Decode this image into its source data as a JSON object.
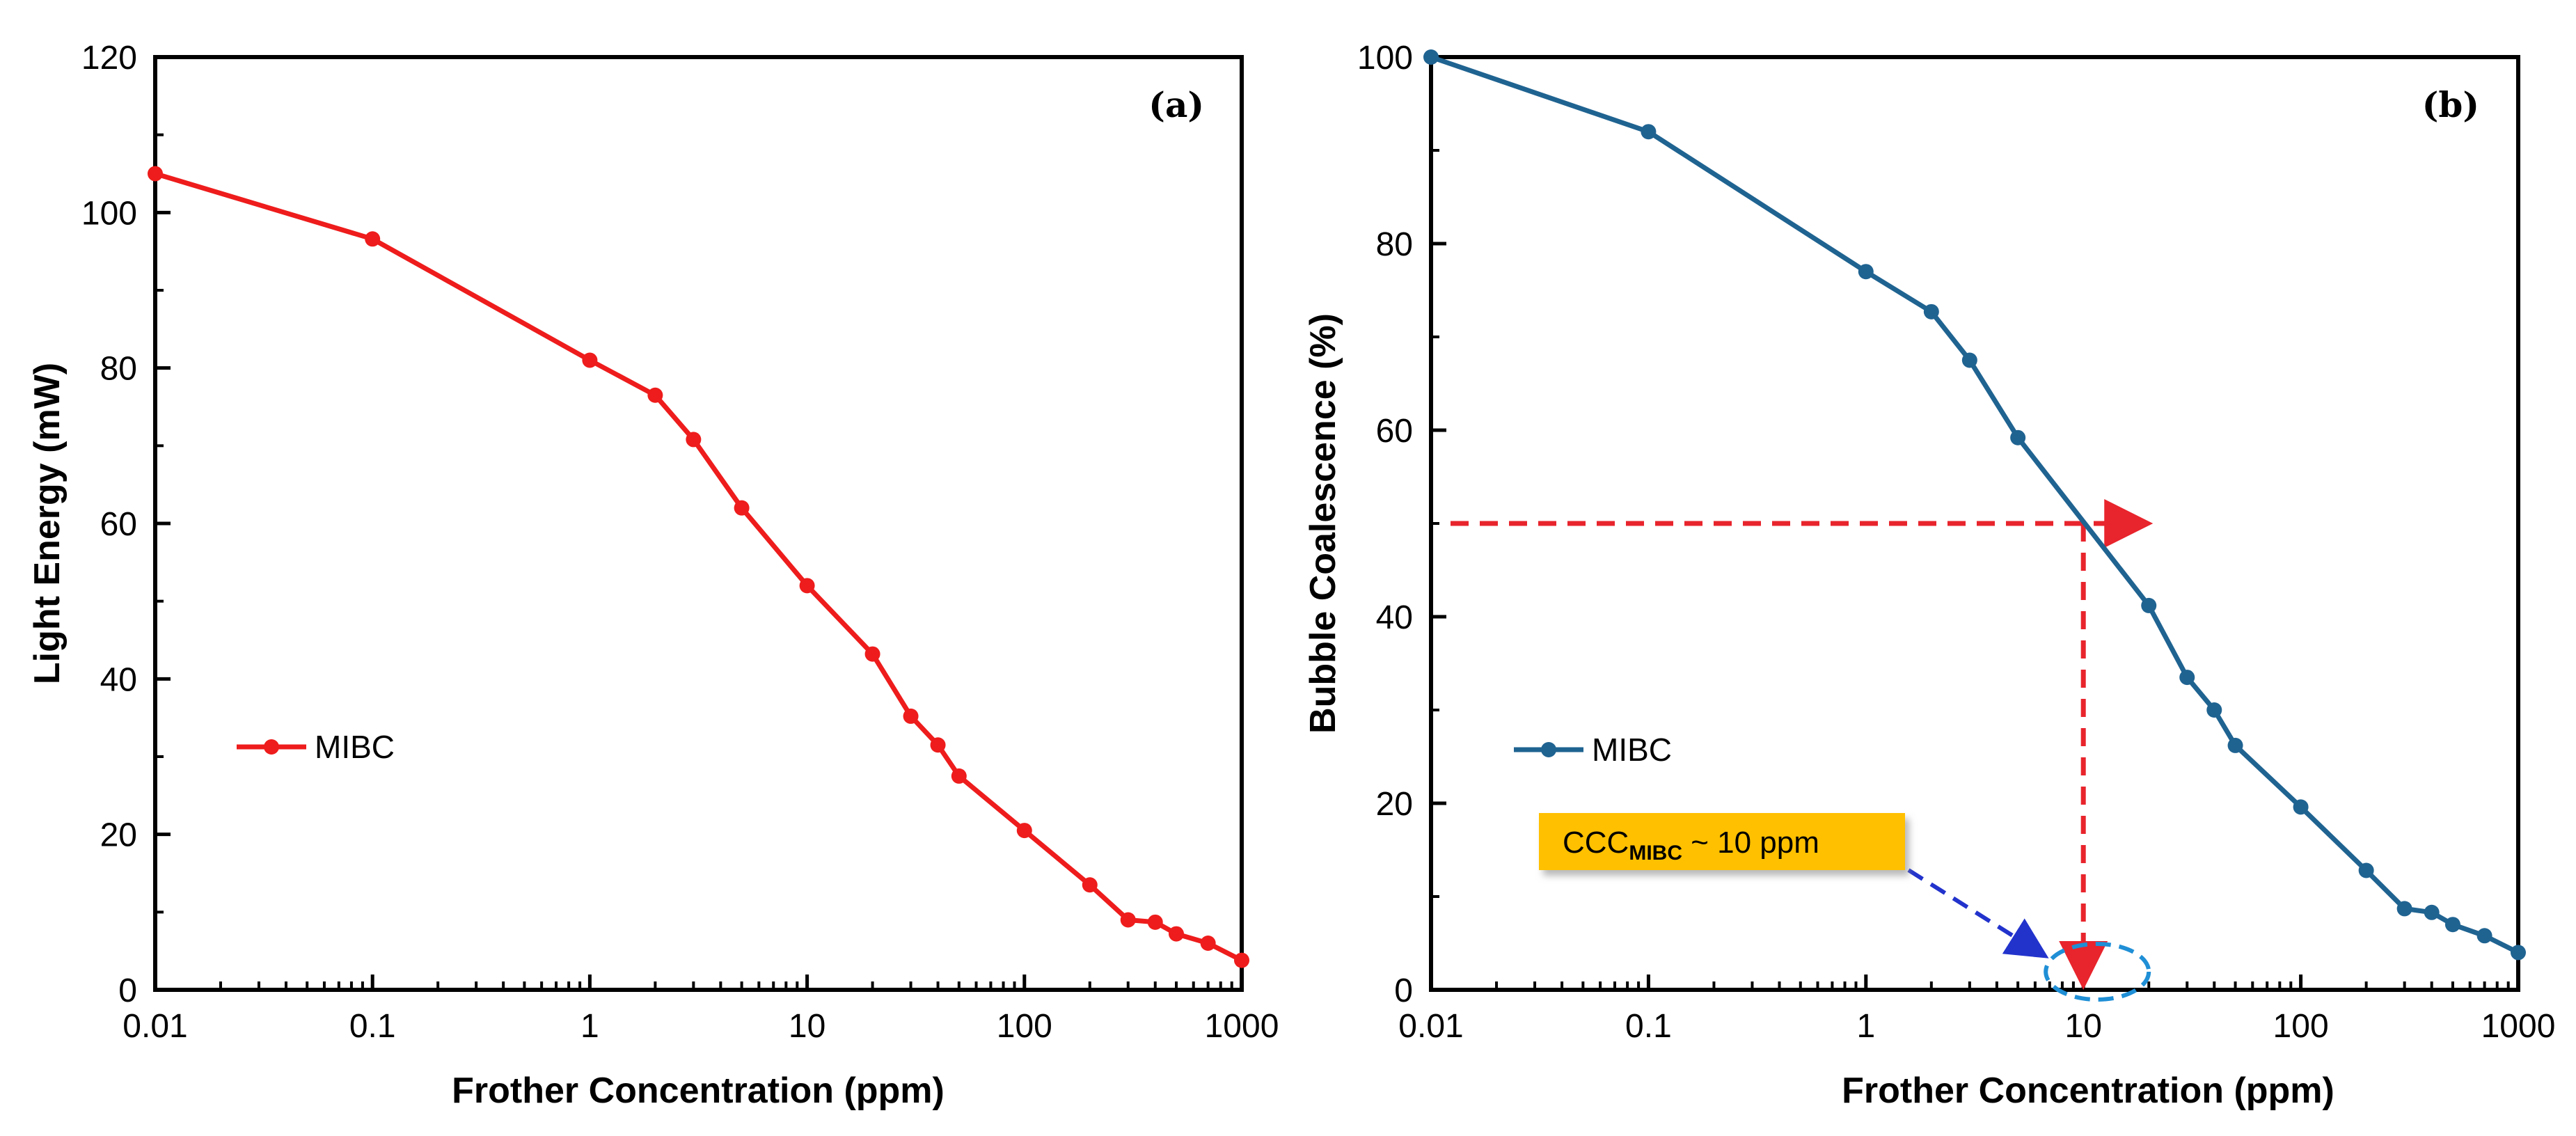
{
  "chart_data": [
    {
      "type": "line",
      "panel_label": "(a)",
      "xlabel": "Frother Concentration (ppm)",
      "ylabel": "Light Energy (mW)",
      "xscale": "log",
      "xlim": [
        0.01,
        1000
      ],
      "ylim": [
        0,
        120
      ],
      "xticks": [
        0.01,
        0.1,
        1,
        10,
        100,
        1000
      ],
      "xtick_labels": [
        "0.01",
        "0.1",
        "1",
        "10",
        "100",
        "1000"
      ],
      "yticks": [
        0,
        20,
        40,
        60,
        80,
        100,
        120
      ],
      "ytick_labels": [
        "0",
        "20",
        "40",
        "60",
        "80",
        "100",
        "120"
      ],
      "legend_position": "middle-left",
      "series": [
        {
          "name": "MIBC",
          "color": "#ee1c1c",
          "x": [
            0.01,
            0.1,
            1,
            2,
            3,
            5,
            10,
            20,
            30,
            40,
            50,
            100,
            200,
            300,
            400,
            500,
            700,
            1000
          ],
          "y": [
            105,
            96.6,
            81,
            76.5,
            70.8,
            62,
            52,
            43.2,
            35.2,
            31.5,
            27.5,
            20.5,
            13.5,
            9,
            8.7,
            7.2,
            6,
            3.8
          ]
        }
      ]
    },
    {
      "type": "line",
      "panel_label": "(b)",
      "xlabel": "Frother Concentration (ppm)",
      "ylabel": "Bubble Coalescence (%)",
      "xscale": "log",
      "xlim": [
        0.01,
        1000
      ],
      "ylim": [
        0,
        100
      ],
      "xticks": [
        0.01,
        0.1,
        1,
        10,
        100,
        1000
      ],
      "xtick_labels": [
        "0.01",
        "0.1",
        "1",
        "10",
        "100",
        "1000"
      ],
      "yticks": [
        0,
        20,
        40,
        60,
        80,
        100
      ],
      "ytick_labels": [
        "0",
        "20",
        "40",
        "60",
        "80",
        "100"
      ],
      "legend_position": "middle-left",
      "series": [
        {
          "name": "MIBC",
          "color": "#1f6391",
          "x": [
            0.01,
            0.1,
            1,
            2,
            3,
            5,
            20,
            30,
            40,
            50,
            100,
            200,
            300,
            400,
            500,
            700,
            1000
          ],
          "y": [
            100,
            92,
            77,
            72.7,
            67.5,
            59.2,
            41.2,
            33.5,
            30,
            26.2,
            19.6,
            12.8,
            8.7,
            8.3,
            7,
            5.8,
            4
          ]
        }
      ],
      "annotations": {
        "hline_y": 50,
        "hline_x_end": 20,
        "vline_x": 10,
        "annotation_color": "#e8242c",
        "callout_main": "CCC",
        "callout_sub": "MIBC",
        "callout_rest": " ~ 10 ppm",
        "callout_color": "#ffc000",
        "callout_arrow_color": "#2233cc",
        "ellipse_color": "#1f8fd6"
      }
    }
  ]
}
